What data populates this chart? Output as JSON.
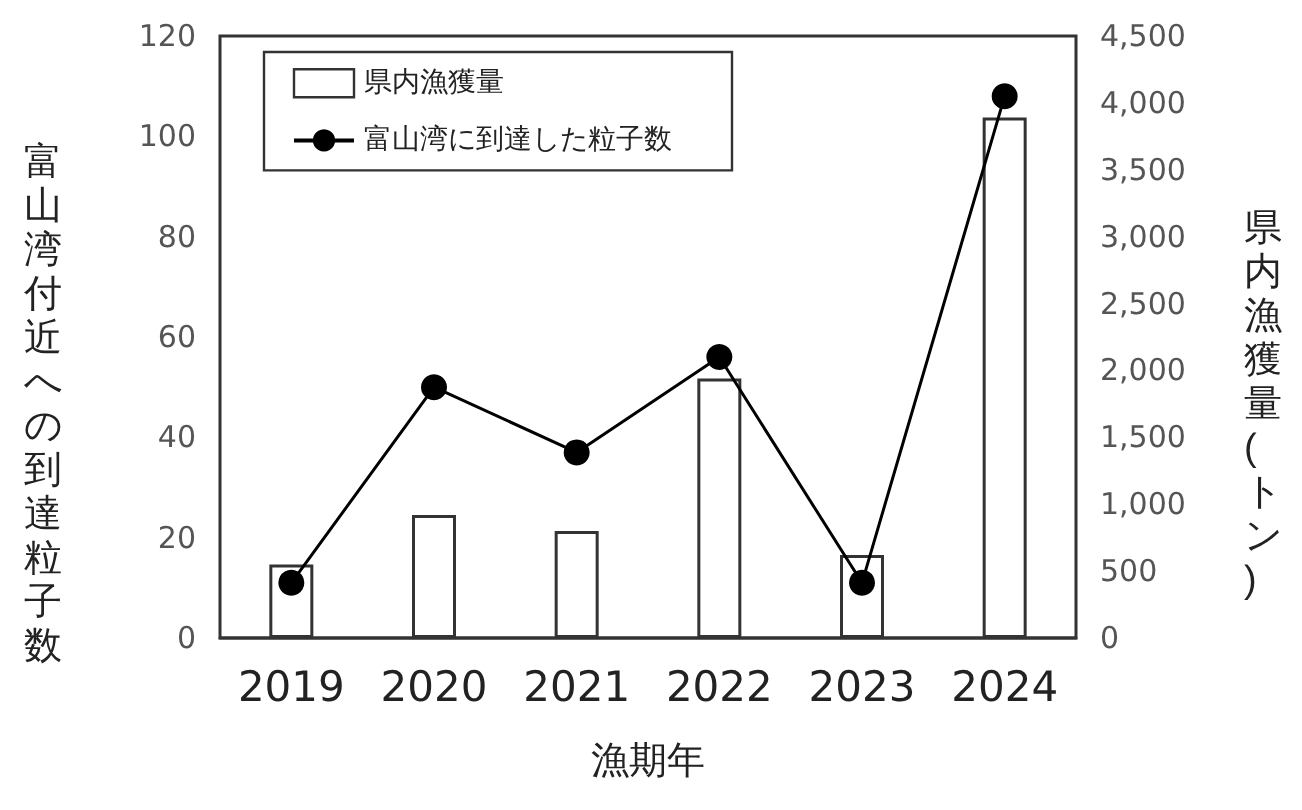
{
  "chart_data": {
    "type": "bar",
    "xlabel": "漁期年",
    "ylabel": "富山湾付近への到達粒子数",
    "y2label": "県内漁獲量(トン)",
    "categories": [
      "2019",
      "2020",
      "2021",
      "2022",
      "2023",
      "2024"
    ],
    "series": [
      {
        "name": "県内漁獲量",
        "axis": "y2",
        "color": "#ffffff",
        "values": [
          550,
          920,
          800,
          1940,
          620,
          3890
        ]
      },
      {
        "name": "富山湾に到達した粒子数",
        "type": "line",
        "color": "#000000",
        "marker": "circle",
        "values": [
          11,
          50,
          37,
          56,
          11,
          108
        ]
      }
    ],
    "ylim": [
      0,
      120
    ],
    "yticks": [
      0,
      20,
      40,
      60,
      80,
      100,
      120
    ],
    "y2lim": [
      0,
      4500
    ],
    "y2ticks": [
      0,
      {
        "value": 500,
        "label": "500"
      },
      {
        "value": 1000,
        "label": "1,000"
      },
      {
        "value": 1500,
        "label": "1,500"
      },
      {
        "value": 2000,
        "label": "2,000"
      },
      {
        "value": 2500,
        "label": "2,500"
      },
      {
        "value": 3000,
        "label": "3,000"
      },
      {
        "value": 3500,
        "label": "3,500"
      },
      {
        "value": 4000,
        "label": "4,000"
      },
      {
        "value": 4500,
        "label": "4,500"
      }
    ],
    "grid": false,
    "legend": "top left"
  }
}
